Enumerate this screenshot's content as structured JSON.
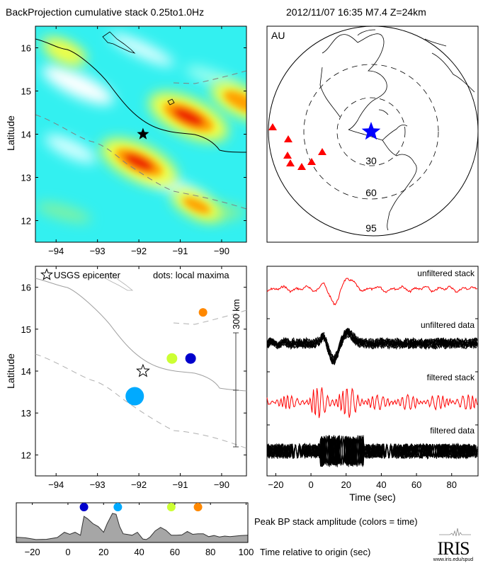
{
  "header": {
    "title": "BackProjection cumulative stack 0.25to1.0Hz",
    "event": "2012/11/07 16:35  M7.4  Z=24km"
  },
  "colors": {
    "epicenter_star": "#000000",
    "globe_star": "#0000ff",
    "station": "#ff0000",
    "stack_trace": "#ff0000",
    "data_trace": "#000000",
    "amp_fill": "#a6a6a6"
  },
  "chart_data": [
    {
      "type": "heatmap",
      "name": "backprojection-map",
      "title": "BackProjection cumulative stack 0.25to1.0Hz",
      "xlabel": "",
      "ylabel": "Latitude",
      "xlim": [
        -94.5,
        -89.4
      ],
      "ylim": [
        11.5,
        16.5
      ],
      "xticks": [
        -94,
        -93,
        -92,
        -91,
        -90
      ],
      "yticks": [
        12,
        13,
        14,
        15,
        16
      ],
      "epicenter": {
        "lon": -91.9,
        "lat": 14.0
      },
      "hotspots": [
        {
          "lon": -90.8,
          "lat": 14.4,
          "level": 1.0
        },
        {
          "lon": -92.0,
          "lat": 13.35,
          "level": 0.95
        },
        {
          "lon": -89.5,
          "lat": 14.75,
          "level": 0.75
        },
        {
          "lon": -90.6,
          "lat": 12.35,
          "level": 0.55
        },
        {
          "lon": -93.8,
          "lat": 15.9,
          "level": 0.4
        }
      ]
    },
    {
      "type": "scatter",
      "name": "global-station-map",
      "label": "AU",
      "distance_rings_deg": [
        30,
        60,
        95
      ],
      "stations_count": 7
    },
    {
      "type": "scatter",
      "name": "local-maxima-map",
      "ylabel": "Latitude",
      "xlim": [
        -94.5,
        -89.4
      ],
      "ylim": [
        11.5,
        16.5
      ],
      "xticks": [
        -94,
        -93,
        -92,
        -91,
        -90
      ],
      "yticks": [
        12,
        13,
        14,
        15,
        16
      ],
      "legend": {
        "star_label": "USGS epicenter",
        "dots_label": "dots: local maxima"
      },
      "scale_bar_label": "300 km",
      "epicenter": {
        "lon": -91.9,
        "lat": 14.0
      },
      "points": [
        {
          "lon": -92.1,
          "lat": 13.4,
          "size": 1.0,
          "color": "#00aaff",
          "time": 28
        },
        {
          "lon": -90.75,
          "lat": 14.3,
          "size": 0.45,
          "color": "#0000cc",
          "time": 10
        },
        {
          "lon": -91.2,
          "lat": 14.3,
          "size": 0.45,
          "color": "#ccff33",
          "time": 58
        },
        {
          "lon": -90.45,
          "lat": 15.4,
          "size": 0.3,
          "color": "#ff8800",
          "time": 73
        }
      ]
    },
    {
      "type": "line",
      "name": "waveforms",
      "xlabel": "Time (sec)",
      "xlim": [
        -25,
        95
      ],
      "xticks": [
        -20,
        0,
        20,
        40,
        60,
        80
      ],
      "series": [
        {
          "name": "unfiltered stack",
          "color": "#ff0000"
        },
        {
          "name": "unfiltered data",
          "color": "#000000"
        },
        {
          "name": "filtered stack",
          "color": "#ff0000"
        },
        {
          "name": "filtered data",
          "color": "#000000"
        }
      ]
    },
    {
      "type": "area",
      "name": "peak-bp-amplitude",
      "label": "Peak BP stack amplitude (colors = time)",
      "xlabel": "Time relative to origin (sec)",
      "xlim": [
        -29,
        101
      ],
      "xticks": [
        -20,
        0,
        20,
        40,
        60,
        80,
        100
      ],
      "x": [
        -29,
        -24,
        -18,
        -12,
        -6,
        -2,
        1,
        4,
        7,
        9,
        11,
        14,
        17,
        20,
        22,
        25,
        27,
        29,
        31,
        33,
        36,
        39,
        42,
        44,
        46,
        49,
        52,
        55,
        58,
        61,
        64,
        67,
        70,
        73,
        76,
        79,
        82,
        85,
        88,
        91,
        94,
        97,
        101
      ],
      "y": [
        0.18,
        0.16,
        0.1,
        0.11,
        0.17,
        0.35,
        0.28,
        0.35,
        0.25,
        0.9,
        0.82,
        0.65,
        0.55,
        0.35,
        0.65,
        1.0,
        0.97,
        0.55,
        0.3,
        0.28,
        0.25,
        0.35,
        0.12,
        0.1,
        0.18,
        0.4,
        0.52,
        0.42,
        0.25,
        0.25,
        0.26,
        0.38,
        0.28,
        0.3,
        0.3,
        0.2,
        0.24,
        0.19,
        0.22,
        0.2,
        0.22,
        0.24,
        0.25
      ],
      "markers": [
        {
          "time": 9,
          "color": "#0000cc"
        },
        {
          "time": 28,
          "color": "#00aaff"
        },
        {
          "time": 58,
          "color": "#ccff33"
        },
        {
          "time": 73,
          "color": "#ff8800"
        }
      ]
    }
  ],
  "logo": {
    "name": "IRIS",
    "url": "www.iris.edu/spud"
  }
}
